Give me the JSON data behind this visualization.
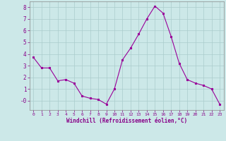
{
  "x": [
    0,
    1,
    2,
    3,
    4,
    5,
    6,
    7,
    8,
    9,
    10,
    11,
    12,
    13,
    14,
    15,
    16,
    17,
    18,
    19,
    20,
    21,
    22,
    23
  ],
  "y": [
    3.7,
    2.8,
    2.8,
    1.7,
    1.8,
    1.5,
    0.4,
    0.2,
    0.1,
    -0.3,
    1.0,
    3.5,
    4.5,
    5.7,
    7.0,
    8.1,
    7.5,
    5.5,
    3.2,
    1.8,
    1.5,
    1.3,
    1.0,
    -0.3
  ],
  "line_color": "#990099",
  "marker": "s",
  "marker_size": 2,
  "bg_color": "#cce8e8",
  "grid_color": "#aacccc",
  "xlabel": "Windchill (Refroidissement éolien,°C)",
  "xlabel_color": "#880088",
  "tick_color": "#880088",
  "ylim": [
    -0.8,
    8.5
  ],
  "xlim": [
    -0.5,
    23.5
  ],
  "ytick_vals": [
    0,
    1,
    2,
    3,
    4,
    5,
    6,
    7,
    8
  ],
  "ytick_labels": [
    "-0",
    "1",
    "2",
    "3",
    "4",
    "5",
    "6",
    "7",
    "8"
  ],
  "xticks": [
    0,
    1,
    2,
    3,
    4,
    5,
    6,
    7,
    8,
    9,
    10,
    11,
    12,
    13,
    14,
    15,
    16,
    17,
    18,
    19,
    20,
    21,
    22,
    23
  ]
}
